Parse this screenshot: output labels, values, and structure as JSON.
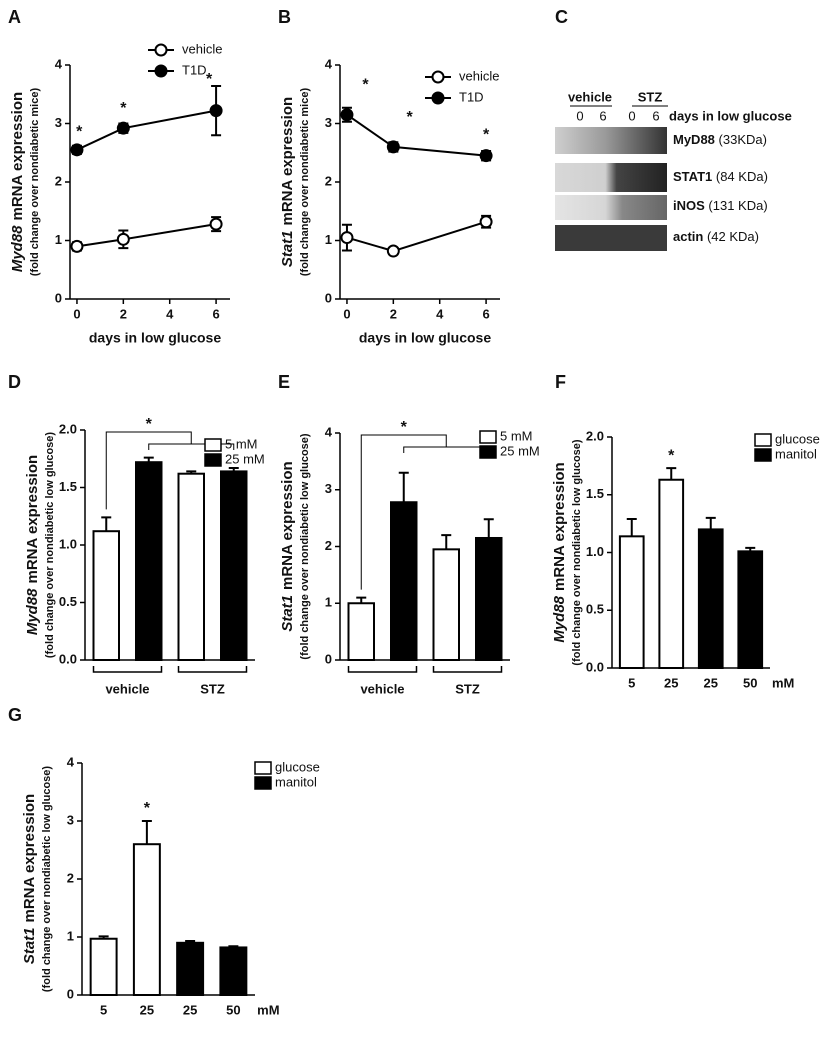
{
  "chart_data": [
    {
      "type": "line",
      "panel": "A",
      "gene": "Myd88",
      "y_label": "mRNA expression",
      "y_sublabel": "(fold change over nondiabetic mice)",
      "x_label": "days in low glucose",
      "xlim": [
        -0.3,
        6.6
      ],
      "xticks": [
        0,
        2,
        4,
        6
      ],
      "ylim": [
        0,
        4
      ],
      "yticks": [
        0,
        1,
        2,
        3,
        4
      ],
      "series": [
        {
          "name": "vehicle",
          "color": "#000000",
          "fill": "#ffffff",
          "x": [
            0,
            2,
            6
          ],
          "values": [
            0.9,
            1.02,
            1.28
          ],
          "errors": [
            0.07,
            0.15,
            0.12
          ]
        },
        {
          "name": "T1D",
          "color": "#000000",
          "fill": "#000000",
          "x": [
            0,
            2,
            6
          ],
          "values": [
            2.55,
            2.92,
            3.22
          ],
          "errors": [
            0.07,
            0.08,
            0.42
          ]
        }
      ],
      "annotations": [
        {
          "text": "*",
          "x": 0.1,
          "y": 2.85
        },
        {
          "text": "*",
          "x": 2,
          "y": 3.25
        },
        {
          "text": "*",
          "x": 5.7,
          "y": 3.75
        }
      ]
    },
    {
      "type": "line",
      "panel": "B",
      "gene": "Stat1",
      "y_label": "mRNA expression",
      "y_sublabel": "(fold change over nondiabetic mice)",
      "x_label": "days in low glucose",
      "xlim": [
        -0.3,
        6.6
      ],
      "xticks": [
        0,
        2,
        4,
        6
      ],
      "ylim": [
        0,
        4
      ],
      "yticks": [
        0,
        1,
        2,
        3,
        4
      ],
      "series": [
        {
          "name": "vehicle",
          "color": "#000000",
          "fill": "#ffffff",
          "x": [
            0,
            2,
            6
          ],
          "values": [
            1.05,
            0.82,
            1.32
          ],
          "errors": [
            0.22,
            0.05,
            0.1
          ]
        },
        {
          "name": "T1D",
          "color": "#000000",
          "fill": "#000000",
          "x": [
            0,
            2,
            6
          ],
          "values": [
            3.15,
            2.6,
            2.45
          ],
          "errors": [
            0.12,
            0.08,
            0.08
          ]
        }
      ],
      "annotations": [
        {
          "text": "*",
          "x": 0.8,
          "y": 3.65
        },
        {
          "text": "*",
          "x": 2.7,
          "y": 3.1
        },
        {
          "text": "*",
          "x": 6,
          "y": 2.8
        }
      ]
    },
    {
      "type": "bar",
      "panel": "D",
      "gene": "Myd88",
      "y_label": "mRNA expression",
      "y_sublabel": "(fold change over nondiabetic low glucose)",
      "categories": [
        null,
        null,
        null,
        null
      ],
      "groups": [
        "vehicle",
        "STZ"
      ],
      "values": [
        1.12,
        1.72,
        1.62,
        1.64
      ],
      "errors": [
        0.12,
        0.04,
        0.02,
        0.03
      ],
      "colors": [
        "#ffffff",
        "#000000",
        "#ffffff",
        "#000000"
      ],
      "legend": [
        {
          "name": "5 mM",
          "color": "#ffffff"
        },
        {
          "name": "25 mM",
          "color": "#000000"
        }
      ],
      "ylim": [
        0,
        2
      ],
      "yticks": [
        {
          "value": 0,
          "label": "0.0"
        },
        {
          "value": 0.5,
          "label": "0.5"
        },
        {
          "value": 1,
          "label": "1.0"
        },
        {
          "value": 1.5,
          "label": "1.5"
        },
        {
          "value": 2,
          "label": "2.0"
        }
      ],
      "bracket_label": "*"
    },
    {
      "type": "bar",
      "panel": "E",
      "gene": "Stat1",
      "y_label": "mRNA expression",
      "y_sublabel": "(fold change over nondiabetic low glucose)",
      "categories": [
        null,
        null,
        null,
        null
      ],
      "groups": [
        "vehicle",
        "STZ"
      ],
      "values": [
        1.0,
        2.78,
        1.95,
        2.15
      ],
      "errors": [
        0.1,
        0.52,
        0.25,
        0.33
      ],
      "colors": [
        "#ffffff",
        "#000000",
        "#ffffff",
        "#000000"
      ],
      "legend": [
        {
          "name": "5 mM",
          "color": "#ffffff"
        },
        {
          "name": "25 mM",
          "color": "#000000"
        }
      ],
      "ylim": [
        0,
        4
      ],
      "yticks": [
        0,
        1,
        2,
        3,
        4
      ],
      "bracket_label": "*"
    },
    {
      "type": "bar",
      "panel": "F",
      "gene": "Myd88",
      "y_label": "mRNA expression",
      "y_sublabel": "(fold change over nondiabetic low glucose)",
      "categories": [
        "5",
        "25",
        "25",
        "50"
      ],
      "x_unit": "mM",
      "values": [
        1.14,
        1.63,
        1.2,
        1.01
      ],
      "errors": [
        0.15,
        0.1,
        0.1,
        0.03
      ],
      "colors": [
        "#ffffff",
        "#ffffff",
        "#000000",
        "#000000"
      ],
      "legend": [
        {
          "name": "glucose",
          "color": "#ffffff"
        },
        {
          "name": "manitol",
          "color": "#000000"
        }
      ],
      "ylim": [
        0,
        2
      ],
      "yticks": [
        {
          "value": 0,
          "label": "0.0"
        },
        {
          "value": 0.5,
          "label": "0.5"
        },
        {
          "value": 1,
          "label": "1.0"
        },
        {
          "value": 1.5,
          "label": "1.5"
        },
        {
          "value": 2,
          "label": "2.0"
        }
      ],
      "marks": [
        null,
        "*",
        null,
        null
      ]
    },
    {
      "type": "bar",
      "panel": "G",
      "gene": "Stat1",
      "y_label": "mRNA expression",
      "y_sublabel": "(fold change over nondiabetic low glucose)",
      "categories": [
        "5",
        "25",
        "25",
        "50"
      ],
      "x_unit": "mM",
      "values": [
        0.97,
        2.6,
        0.9,
        0.82
      ],
      "errors": [
        0.04,
        0.4,
        0.03,
        0.02
      ],
      "colors": [
        "#ffffff",
        "#ffffff",
        "#000000",
        "#000000"
      ],
      "legend": [
        {
          "name": "glucose",
          "color": "#ffffff"
        },
        {
          "name": "manitol",
          "color": "#000000"
        }
      ],
      "ylim": [
        0,
        4
      ],
      "yticks": [
        0,
        1,
        2,
        3,
        4
      ],
      "marks": [
        null,
        "*",
        null,
        null
      ]
    }
  ],
  "blot": {
    "panel": "C",
    "groups": [
      "vehicle",
      "STZ"
    ],
    "lanes": [
      "0",
      "6",
      "0",
      "6"
    ],
    "lane_title": "days in low glucose",
    "bands": [
      {
        "protein": "MyD88",
        "size": "(33KDa)"
      },
      {
        "protein": "STAT1",
        "size": "(84 KDa)"
      },
      {
        "protein": "iNOS",
        "size": "(131 KDa)"
      },
      {
        "protein": "actin",
        "size": "(42 KDa)"
      }
    ]
  }
}
